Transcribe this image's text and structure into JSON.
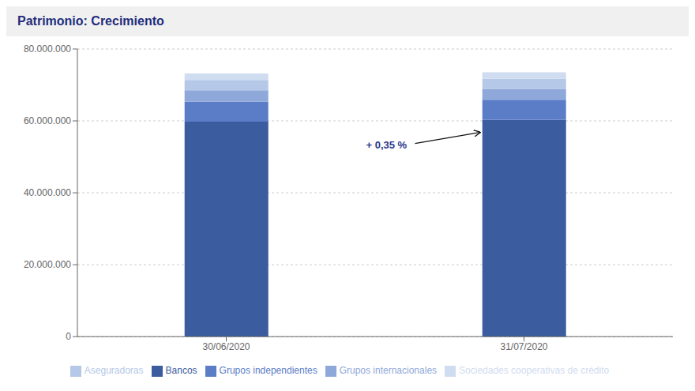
{
  "chart_data": {
    "type": "bar",
    "title": "Patrimonio: Crecimiento",
    "stacked": true,
    "categories": [
      "30/06/2020",
      "31/07/2020"
    ],
    "series": [
      {
        "name": "Bancos",
        "color": "#3b5c9e",
        "values": [
          59800000,
          60300000
        ]
      },
      {
        "name": "Grupos independientes",
        "color": "#5b7dc8",
        "values": [
          5600000,
          5600000
        ]
      },
      {
        "name": "Grupos internacionales",
        "color": "#8fa8da",
        "values": [
          3100000,
          3000000
        ]
      },
      {
        "name": "Aseguradoras",
        "color": "#b5c8e8",
        "values": [
          2900000,
          2800000
        ]
      },
      {
        "name": "Sociedades cooperativas de crédito",
        "color": "#d0dcf0",
        "values": [
          1800000,
          1800000
        ]
      }
    ],
    "ylim": [
      0,
      80000000
    ],
    "yticks": [
      0,
      {
        "value": 20000000,
        "label": "20.000.000"
      },
      {
        "value": 40000000,
        "label": "40.000.000"
      },
      {
        "value": 60000000,
        "label": "60.000.000"
      },
      {
        "value": 80000000,
        "label": "80.000.000"
      }
    ],
    "grid": true,
    "legend": "bottom",
    "annotations": [
      {
        "text": "+ 0,35 %",
        "color": "#2d3a8c"
      }
    ]
  }
}
